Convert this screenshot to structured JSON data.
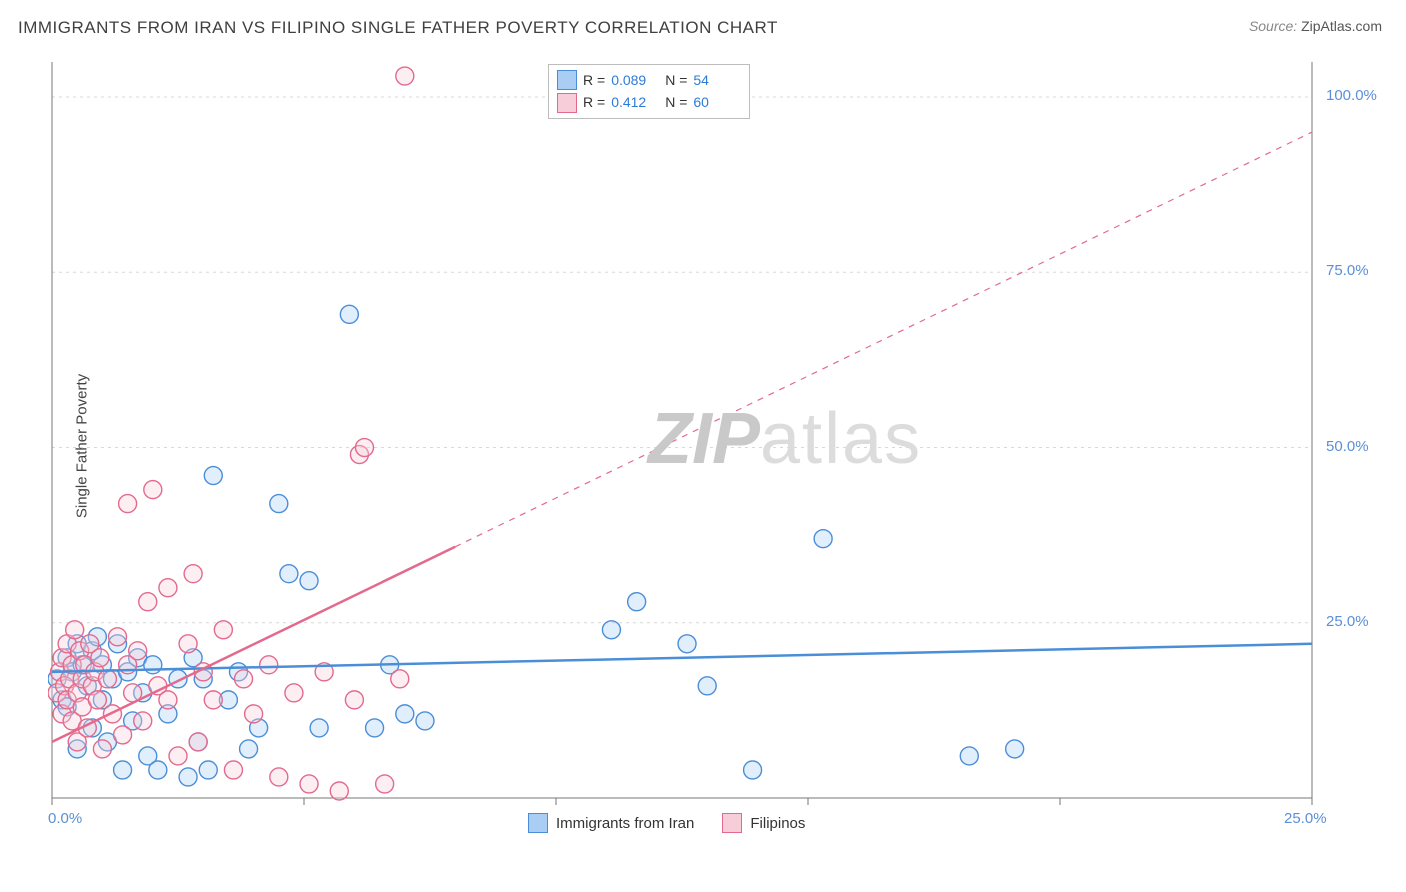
{
  "title": "IMMIGRANTS FROM IRAN VS FILIPINO SINGLE FATHER POVERTY CORRELATION CHART",
  "source_label": "Source:",
  "source_name": "ZipAtlas.com",
  "ylabel": "Single Father Poverty",
  "watermark_zip": "ZIP",
  "watermark_atlas": "atlas",
  "chart": {
    "type": "scatter",
    "x_domain": [
      0,
      25
    ],
    "y_domain": [
      0,
      105
    ],
    "x_ticks": [
      0,
      5,
      10,
      15,
      20,
      25
    ],
    "y_ticks": [
      25,
      50,
      75,
      100
    ],
    "x_tick_labels": {
      "0": "0.0%",
      "25": "25.0%"
    },
    "y_tick_labels": {
      "25": "25.0%",
      "50": "50.0%",
      "75": "75.0%",
      "100": "100.0%"
    },
    "grid_color": "#d8d8d8",
    "axis_color": "#777",
    "plot_bg": "#ffffff",
    "marker_radius": 9,
    "marker_stroke_width": 1.4,
    "marker_fill_opacity": 0.35,
    "line_width_solid": 2.5,
    "line_width_dash": 1.2,
    "dash_pattern": "6,6",
    "series": [
      {
        "name": "Immigrants from Iran",
        "fill": "#a9cdf3",
        "stroke": "#4b8ed8",
        "R": "0.089",
        "N": "54",
        "trend": {
          "y_at_x0": 18.0,
          "y_at_x25": 22.0,
          "solid_until_x": 25
        },
        "points": [
          [
            0.1,
            17
          ],
          [
            0.2,
            14
          ],
          [
            0.3,
            20
          ],
          [
            0.3,
            13
          ],
          [
            0.4,
            18
          ],
          [
            0.5,
            22
          ],
          [
            0.5,
            7
          ],
          [
            0.6,
            19
          ],
          [
            0.7,
            16
          ],
          [
            0.8,
            21
          ],
          [
            0.8,
            10
          ],
          [
            0.9,
            23
          ],
          [
            1.0,
            14
          ],
          [
            1.0,
            19
          ],
          [
            1.1,
            8
          ],
          [
            1.2,
            17
          ],
          [
            1.3,
            22
          ],
          [
            1.4,
            4
          ],
          [
            1.5,
            18
          ],
          [
            1.6,
            11
          ],
          [
            1.7,
            20
          ],
          [
            1.8,
            15
          ],
          [
            1.9,
            6
          ],
          [
            2.0,
            19
          ],
          [
            2.1,
            4
          ],
          [
            2.3,
            12
          ],
          [
            2.5,
            17
          ],
          [
            2.7,
            3
          ],
          [
            2.8,
            20
          ],
          [
            2.9,
            8
          ],
          [
            3.0,
            17
          ],
          [
            3.1,
            4
          ],
          [
            3.2,
            46
          ],
          [
            3.5,
            14
          ],
          [
            3.7,
            18
          ],
          [
            3.9,
            7
          ],
          [
            4.1,
            10
          ],
          [
            4.5,
            42
          ],
          [
            4.7,
            32
          ],
          [
            5.1,
            31
          ],
          [
            5.3,
            10
          ],
          [
            5.9,
            69
          ],
          [
            6.4,
            10
          ],
          [
            6.7,
            19
          ],
          [
            7.0,
            12
          ],
          [
            7.4,
            11
          ],
          [
            11.1,
            24
          ],
          [
            11.6,
            28
          ],
          [
            12.6,
            22
          ],
          [
            13.0,
            16
          ],
          [
            13.9,
            4
          ],
          [
            15.3,
            37
          ],
          [
            18.2,
            6
          ],
          [
            19.1,
            7
          ]
        ]
      },
      {
        "name": "Filipinos",
        "fill": "#f7cdd9",
        "stroke": "#e36a8d",
        "R": "0.412",
        "N": "60",
        "trend": {
          "y_at_x0": 8.0,
          "y_at_x25": 95.0,
          "solid_until_x": 8
        },
        "points": [
          [
            0.1,
            15
          ],
          [
            0.15,
            18
          ],
          [
            0.2,
            12
          ],
          [
            0.2,
            20
          ],
          [
            0.25,
            16
          ],
          [
            0.3,
            14
          ],
          [
            0.3,
            22
          ],
          [
            0.35,
            17
          ],
          [
            0.4,
            11
          ],
          [
            0.4,
            19
          ],
          [
            0.45,
            24
          ],
          [
            0.5,
            15
          ],
          [
            0.5,
            8
          ],
          [
            0.55,
            21
          ],
          [
            0.6,
            17
          ],
          [
            0.6,
            13
          ],
          [
            0.65,
            19
          ],
          [
            0.7,
            10
          ],
          [
            0.75,
            22
          ],
          [
            0.8,
            16
          ],
          [
            0.85,
            18
          ],
          [
            0.9,
            14
          ],
          [
            0.95,
            20
          ],
          [
            1.0,
            7
          ],
          [
            1.1,
            17
          ],
          [
            1.2,
            12
          ],
          [
            1.3,
            23
          ],
          [
            1.4,
            9
          ],
          [
            1.5,
            19
          ],
          [
            1.5,
            42
          ],
          [
            1.6,
            15
          ],
          [
            1.7,
            21
          ],
          [
            1.8,
            11
          ],
          [
            1.9,
            28
          ],
          [
            2.0,
            44
          ],
          [
            2.1,
            16
          ],
          [
            2.3,
            14
          ],
          [
            2.3,
            30
          ],
          [
            2.5,
            6
          ],
          [
            2.7,
            22
          ],
          [
            2.8,
            32
          ],
          [
            2.9,
            8
          ],
          [
            3.0,
            18
          ],
          [
            3.2,
            14
          ],
          [
            3.4,
            24
          ],
          [
            3.6,
            4
          ],
          [
            3.8,
            17
          ],
          [
            4.0,
            12
          ],
          [
            4.3,
            19
          ],
          [
            4.5,
            3
          ],
          [
            4.8,
            15
          ],
          [
            5.1,
            2
          ],
          [
            5.4,
            18
          ],
          [
            5.7,
            1
          ],
          [
            6.0,
            14
          ],
          [
            6.1,
            49
          ],
          [
            6.2,
            50
          ],
          [
            6.6,
            2
          ],
          [
            6.9,
            17
          ],
          [
            7.0,
            103
          ]
        ]
      }
    ]
  },
  "legend_top": {
    "r_label": "R =",
    "n_label": "N ="
  },
  "legend_bottom": {
    "series1_label": "Immigrants from Iran",
    "series2_label": "Filipinos"
  }
}
